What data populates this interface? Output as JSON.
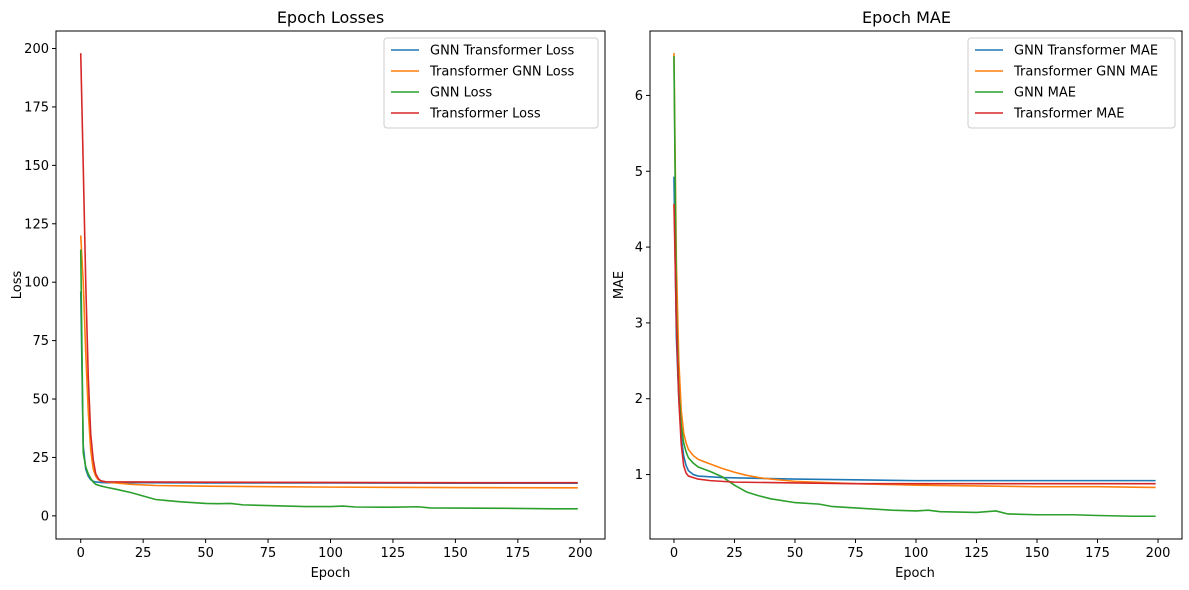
{
  "colors": {
    "blue": "#1f77b4",
    "orange": "#ff7f0e",
    "green": "#2ca02c",
    "red": "#d62728"
  },
  "chart_data": [
    {
      "type": "line",
      "title": "Epoch Losses",
      "xlabel": "Epoch",
      "ylabel": "Loss",
      "xlim": [
        -9.9,
        209.9
      ],
      "ylim": [
        -9.9,
        207.5
      ],
      "xticks": [
        0,
        25,
        50,
        75,
        100,
        125,
        150,
        175,
        200
      ],
      "yticks": [
        0,
        25,
        50,
        75,
        100,
        125,
        150,
        175,
        200
      ],
      "legend": "top-right",
      "grid": false,
      "series": [
        {
          "name": "GNN Transformer Loss",
          "color": "#1f77b4",
          "points": [
            [
              0,
              96
            ],
            [
              1,
              30
            ],
            [
              2,
              20
            ],
            [
              3,
              17
            ],
            [
              4,
              15.5
            ],
            [
              5,
              14.8
            ],
            [
              6,
              14.5
            ],
            [
              8,
              14.3
            ],
            [
              10,
              14.2
            ],
            [
              25,
              14.2
            ],
            [
              50,
              14.1
            ],
            [
              100,
              14.1
            ],
            [
              150,
              14.0
            ],
            [
              199,
              14.0
            ]
          ]
        },
        {
          "name": "Transformer GNN Loss",
          "color": "#ff7f0e",
          "points": [
            [
              0,
              120
            ],
            [
              1,
              100
            ],
            [
              2,
              70
            ],
            [
              3,
              45
            ],
            [
              4,
              28
            ],
            [
              5,
              20
            ],
            [
              6,
              17
            ],
            [
              7,
              15.5
            ],
            [
              8,
              15
            ],
            [
              10,
              14.5
            ],
            [
              15,
              14
            ],
            [
              20,
              13.5
            ],
            [
              30,
              13
            ],
            [
              50,
              12.7
            ],
            [
              75,
              12.5
            ],
            [
              100,
              12.3
            ],
            [
              150,
              12.1
            ],
            [
              199,
              12.0
            ]
          ]
        },
        {
          "name": "GNN Loss",
          "color": "#2ca02c",
          "points": [
            [
              0,
              114
            ],
            [
              1,
              27
            ],
            [
              2,
              21
            ],
            [
              3,
              18
            ],
            [
              4,
              16
            ],
            [
              5,
              14.5
            ],
            [
              6,
              13.5
            ],
            [
              8,
              12.8
            ],
            [
              10,
              12.3
            ],
            [
              15,
              11.2
            ],
            [
              20,
              10
            ],
            [
              25,
              8.5
            ],
            [
              30,
              7
            ],
            [
              35,
              6.5
            ],
            [
              40,
              6
            ],
            [
              50,
              5.3
            ],
            [
              55,
              5.2
            ],
            [
              60,
              5.3
            ],
            [
              65,
              4.7
            ],
            [
              75,
              4.4
            ],
            [
              90,
              4.0
            ],
            [
              100,
              4.0
            ],
            [
              105,
              4.2
            ],
            [
              110,
              3.8
            ],
            [
              125,
              3.7
            ],
            [
              135,
              3.9
            ],
            [
              140,
              3.4
            ],
            [
              160,
              3.3
            ],
            [
              175,
              3.2
            ],
            [
              190,
              3.0
            ],
            [
              199,
              3.0
            ]
          ]
        },
        {
          "name": "Transformer Loss",
          "color": "#d62728",
          "points": [
            [
              0,
              198
            ],
            [
              1,
              150
            ],
            [
              2,
              100
            ],
            [
              3,
              60
            ],
            [
              4,
              35
            ],
            [
              5,
              24
            ],
            [
              6,
              18
            ],
            [
              7,
              16
            ],
            [
              8,
              15
            ],
            [
              10,
              14.6
            ],
            [
              20,
              14.5
            ],
            [
              50,
              14.4
            ],
            [
              100,
              14.3
            ],
            [
              150,
              14.2
            ],
            [
              199,
              14.2
            ]
          ]
        }
      ]
    },
    {
      "type": "line",
      "title": "Epoch MAE",
      "xlabel": "Epoch",
      "ylabel": "MAE",
      "xlim": [
        -9.9,
        209.9
      ],
      "ylim": [
        0.15,
        6.85
      ],
      "xticks": [
        0,
        25,
        50,
        75,
        100,
        125,
        150,
        175,
        200
      ],
      "yticks": [
        1,
        2,
        3,
        4,
        5,
        6
      ],
      "legend": "top-right",
      "grid": false,
      "series": [
        {
          "name": "GNN Transformer MAE",
          "color": "#1f77b4",
          "points": [
            [
              0,
              4.93
            ],
            [
              1,
              2.8
            ],
            [
              2,
              2.0
            ],
            [
              3,
              1.5
            ],
            [
              4,
              1.25
            ],
            [
              5,
              1.12
            ],
            [
              6,
              1.05
            ],
            [
              8,
              1.0
            ],
            [
              10,
              0.98
            ],
            [
              20,
              0.96
            ],
            [
              50,
              0.94
            ],
            [
              75,
              0.93
            ],
            [
              100,
              0.92
            ],
            [
              150,
              0.92
            ],
            [
              199,
              0.92
            ]
          ]
        },
        {
          "name": "Transformer GNN MAE",
          "color": "#ff7f0e",
          "points": [
            [
              0,
              6.56
            ],
            [
              1,
              3.8
            ],
            [
              2,
              2.5
            ],
            [
              3,
              1.85
            ],
            [
              4,
              1.55
            ],
            [
              5,
              1.42
            ],
            [
              6,
              1.33
            ],
            [
              8,
              1.25
            ],
            [
              10,
              1.2
            ],
            [
              15,
              1.14
            ],
            [
              20,
              1.08
            ],
            [
              25,
              1.03
            ],
            [
              30,
              0.99
            ],
            [
              35,
              0.96
            ],
            [
              40,
              0.94
            ],
            [
              50,
              0.91
            ],
            [
              75,
              0.88
            ],
            [
              100,
              0.86
            ],
            [
              125,
              0.85
            ],
            [
              150,
              0.84
            ],
            [
              175,
              0.84
            ],
            [
              199,
              0.83
            ]
          ]
        },
        {
          "name": "GNN MAE",
          "color": "#2ca02c",
          "points": [
            [
              0,
              6.52
            ],
            [
              1,
              3.2
            ],
            [
              2,
              2.1
            ],
            [
              3,
              1.65
            ],
            [
              4,
              1.42
            ],
            [
              5,
              1.3
            ],
            [
              6,
              1.22
            ],
            [
              8,
              1.15
            ],
            [
              10,
              1.1
            ],
            [
              15,
              1.04
            ],
            [
              20,
              0.97
            ],
            [
              25,
              0.86
            ],
            [
              30,
              0.77
            ],
            [
              35,
              0.72
            ],
            [
              40,
              0.68
            ],
            [
              50,
              0.63
            ],
            [
              60,
              0.61
            ],
            [
              65,
              0.58
            ],
            [
              75,
              0.56
            ],
            [
              90,
              0.53
            ],
            [
              100,
              0.52
            ],
            [
              105,
              0.53
            ],
            [
              110,
              0.51
            ],
            [
              125,
              0.5
            ],
            [
              133,
              0.52
            ],
            [
              138,
              0.48
            ],
            [
              150,
              0.47
            ],
            [
              165,
              0.47
            ],
            [
              175,
              0.46
            ],
            [
              190,
              0.45
            ],
            [
              199,
              0.45
            ]
          ]
        },
        {
          "name": "Transformer MAE",
          "color": "#d62728",
          "points": [
            [
              0,
              4.57
            ],
            [
              1,
              3.0
            ],
            [
              2,
              2.0
            ],
            [
              3,
              1.4
            ],
            [
              4,
              1.12
            ],
            [
              5,
              1.02
            ],
            [
              6,
              0.98
            ],
            [
              8,
              0.96
            ],
            [
              10,
              0.94
            ],
            [
              15,
              0.92
            ],
            [
              25,
              0.9
            ],
            [
              50,
              0.89
            ],
            [
              75,
              0.88
            ],
            [
              100,
              0.88
            ],
            [
              150,
              0.88
            ],
            [
              199,
              0.88
            ]
          ]
        }
      ]
    }
  ]
}
